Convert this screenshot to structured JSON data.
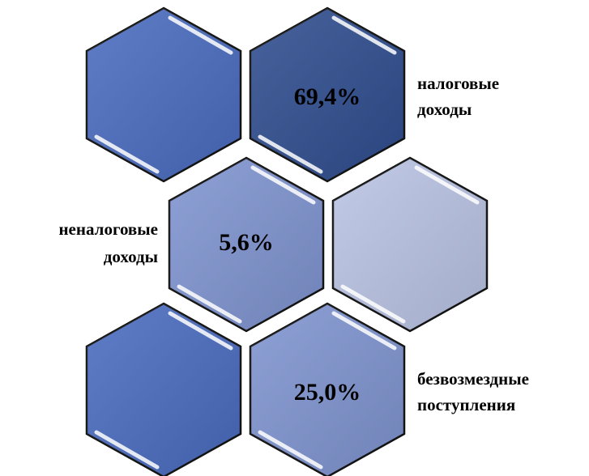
{
  "segments": [
    {
      "value": "69,4%",
      "label": [
        "налоговые",
        "доходы"
      ]
    },
    {
      "value": "5,6%",
      "label": [
        "неналоговые",
        "доходы"
      ]
    },
    {
      "value": "25,0%",
      "label": [
        "безвозмездные",
        "поступления"
      ]
    }
  ]
}
